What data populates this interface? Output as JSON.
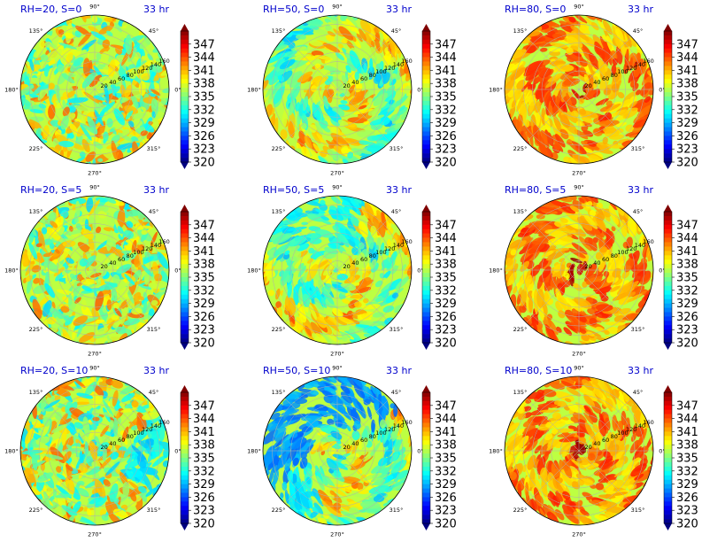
{
  "figure": {
    "time_label": "33 hr"
  },
  "chart_data": {
    "type": "polar_heatmap",
    "grid": true,
    "angle_ticks": [
      "90°",
      "45°",
      "0°",
      "315°",
      "270°",
      "225°",
      "180°",
      "135°"
    ],
    "radial_ticks": [
      "20",
      "40",
      "60",
      "80",
      "100",
      "120",
      "140",
      "160"
    ],
    "radial_range": [
      0,
      160
    ],
    "colorbar": {
      "ticks": [
        "347",
        "344",
        "341",
        "338",
        "335",
        "332",
        "329",
        "326",
        "323",
        "320"
      ],
      "range": [
        320,
        350
      ],
      "colormap": "jet",
      "extend": "both"
    },
    "panels": [
      {
        "title": "RH=20, S=0",
        "row": 0,
        "col": 0,
        "rh": 20,
        "s": 0
      },
      {
        "title": "RH=50, S=0",
        "row": 0,
        "col": 1,
        "rh": 50,
        "s": 0
      },
      {
        "title": "RH=80, S=0",
        "row": 0,
        "col": 2,
        "rh": 80,
        "s": 0
      },
      {
        "title": "RH=20, S=5",
        "row": 1,
        "col": 0,
        "rh": 20,
        "s": 5
      },
      {
        "title": "RH=50, S=5",
        "row": 1,
        "col": 1,
        "rh": 50,
        "s": 5
      },
      {
        "title": "RH=80, S=5",
        "row": 1,
        "col": 2,
        "rh": 80,
        "s": 5
      },
      {
        "title": "RH=20, S=10",
        "row": 2,
        "col": 0,
        "rh": 20,
        "s": 10
      },
      {
        "title": "RH=50, S=10",
        "row": 2,
        "col": 1,
        "rh": 50,
        "s": 10
      },
      {
        "title": "RH=80, S=10",
        "row": 2,
        "col": 2,
        "rh": 80,
        "s": 10
      }
    ]
  }
}
